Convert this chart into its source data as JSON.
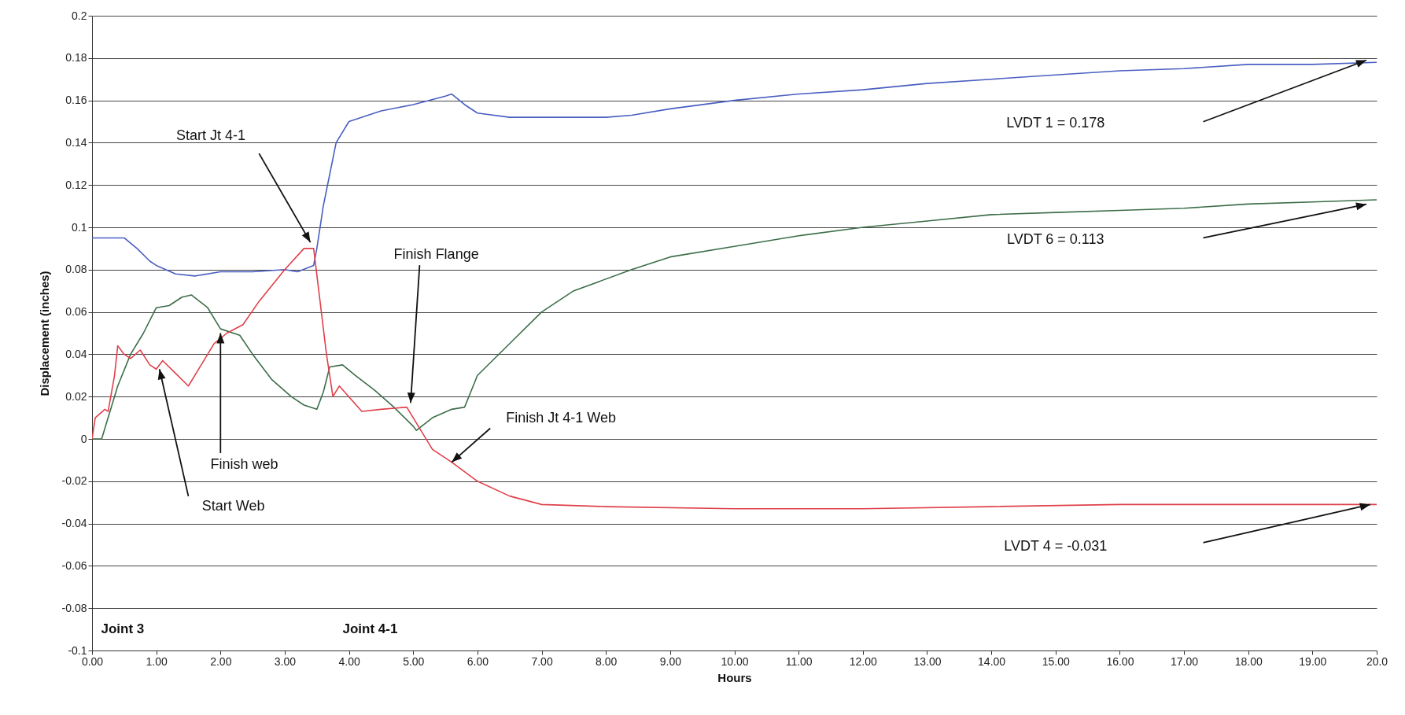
{
  "chart_data": {
    "type": "line",
    "xlabel": "Hours",
    "ylabel": "Displacement (inches)",
    "xlim": [
      0,
      20
    ],
    "ylim": [
      -0.1,
      0.2
    ],
    "xticks": [
      {
        "value": 0,
        "label": "0.00"
      },
      {
        "value": 1,
        "label": "1.00"
      },
      {
        "value": 2,
        "label": "2.00"
      },
      {
        "value": 3,
        "label": "3.00"
      },
      {
        "value": 4,
        "label": "4.00"
      },
      {
        "value": 5,
        "label": "5.00"
      },
      {
        "value": 6,
        "label": "6.00"
      },
      {
        "value": 7,
        "label": "7.00"
      },
      {
        "value": 8,
        "label": "8.00"
      },
      {
        "value": 9,
        "label": "9.00"
      },
      {
        "value": 10,
        "label": "10.00"
      },
      {
        "value": 11,
        "label": "11.00"
      },
      {
        "value": 12,
        "label": "12.00"
      },
      {
        "value": 13,
        "label": "13.00"
      },
      {
        "value": 14,
        "label": "14.00"
      },
      {
        "value": 15,
        "label": "15.00"
      },
      {
        "value": 16,
        "label": "16.00"
      },
      {
        "value": 17,
        "label": "17.00"
      },
      {
        "value": 18,
        "label": "18.00"
      },
      {
        "value": 19,
        "label": "19.00"
      },
      {
        "value": 20,
        "label": "20.0"
      }
    ],
    "yticks": [
      -0.1,
      -0.08,
      -0.06,
      -0.04,
      -0.02,
      0,
      0.02,
      0.04,
      0.06,
      0.08,
      0.1,
      0.12,
      0.14,
      0.16,
      0.18,
      0.2
    ],
    "grid": "y",
    "series": [
      {
        "color": "#4a5fc1",
        "x": [
          0,
          0.3,
          0.5,
          0.7,
          0.9,
          1.0,
          1.3,
          1.6,
          2.0,
          2.5,
          3.0,
          3.2,
          3.45,
          3.5,
          3.6,
          3.7,
          3.8,
          4.0,
          4.5,
          5.0,
          5.5,
          5.6,
          5.8,
          6.0,
          6.5,
          7.0,
          8.0,
          8.4,
          9.0,
          10.0,
          11.0,
          12.0,
          13.0,
          14.0,
          15.0,
          16.0,
          17.0,
          18.0,
          19.0,
          20.0
        ],
        "values": [
          0.095,
          0.095,
          0.095,
          0.09,
          0.084,
          0.082,
          0.078,
          0.077,
          0.079,
          0.079,
          0.08,
          0.079,
          0.082,
          0.09,
          0.11,
          0.125,
          0.14,
          0.15,
          0.155,
          0.158,
          0.162,
          0.163,
          0.158,
          0.154,
          0.152,
          0.152,
          0.152,
          0.153,
          0.156,
          0.16,
          0.163,
          0.165,
          0.168,
          0.17,
          0.172,
          0.174,
          0.175,
          0.177,
          0.177,
          0.178
        ]
      },
      {
        "color": "#3c6e4a",
        "x": [
          0,
          0.15,
          0.25,
          0.4,
          0.6,
          0.8,
          1.0,
          1.2,
          1.4,
          1.55,
          1.8,
          2.0,
          2.3,
          2.5,
          2.8,
          3.1,
          3.3,
          3.5,
          3.6,
          3.7,
          3.9,
          4.1,
          4.4,
          4.7,
          5.0,
          5.05,
          5.3,
          5.6,
          5.8,
          6.0,
          6.5,
          7.0,
          7.5,
          8.4,
          9.0,
          10.0,
          11.0,
          12.0,
          13.0,
          14.0,
          15.0,
          16.0,
          17.0,
          18.0,
          19.0,
          20.0
        ],
        "values": [
          0,
          0,
          0.01,
          0.025,
          0.04,
          0.05,
          0.062,
          0.063,
          0.067,
          0.068,
          0.062,
          0.052,
          0.049,
          0.04,
          0.028,
          0.02,
          0.016,
          0.014,
          0.022,
          0.034,
          0.035,
          0.03,
          0.023,
          0.015,
          0.006,
          0.004,
          0.01,
          0.014,
          0.015,
          0.03,
          0.045,
          0.06,
          0.07,
          0.08,
          0.086,
          0.091,
          0.096,
          0.1,
          0.103,
          0.106,
          0.107,
          0.108,
          0.109,
          0.111,
          0.112,
          0.113
        ]
      },
      {
        "color": "#e0404a",
        "x": [
          0,
          0.05,
          0.2,
          0.25,
          0.35,
          0.4,
          0.5,
          0.6,
          0.75,
          0.9,
          1.0,
          1.1,
          1.3,
          1.5,
          1.7,
          1.9,
          2.1,
          2.35,
          2.6,
          3.0,
          3.3,
          3.45,
          3.55,
          3.65,
          3.75,
          3.85,
          4.2,
          4.5,
          4.9,
          5.1,
          5.3,
          5.6,
          6.0,
          6.5,
          7.0,
          8.0,
          10.0,
          12.0,
          14.0,
          16.0,
          18.0,
          20.0
        ],
        "values": [
          0,
          0.01,
          0.014,
          0.013,
          0.03,
          0.044,
          0.04,
          0.038,
          0.042,
          0.035,
          0.033,
          0.037,
          0.031,
          0.025,
          0.035,
          0.045,
          0.05,
          0.054,
          0.065,
          0.08,
          0.09,
          0.09,
          0.065,
          0.04,
          0.02,
          0.025,
          0.013,
          0.014,
          0.015,
          0.005,
          -0.005,
          -0.011,
          -0.02,
          -0.027,
          -0.031,
          -0.032,
          -0.033,
          -0.033,
          -0.032,
          -0.031,
          -0.031,
          -0.031
        ]
      }
    ],
    "annotations": [
      "Start Jt 4-1",
      "Finish Flange",
      {
        "text": "Finish Jt 4-1 Web",
        "x": 5.6,
        "y": -0.011
      },
      {
        "text": "Finish web",
        "x": 2.0,
        "y": 0.05
      },
      {
        "text": "Start Web",
        "x": 1.05,
        "y": 0.033
      },
      "LVDT 1 = 0.178",
      "LVDT 6 = 0.113",
      "LVDT 4 = -0.031",
      "Joint 3",
      "Joint 4-1"
    ]
  }
}
